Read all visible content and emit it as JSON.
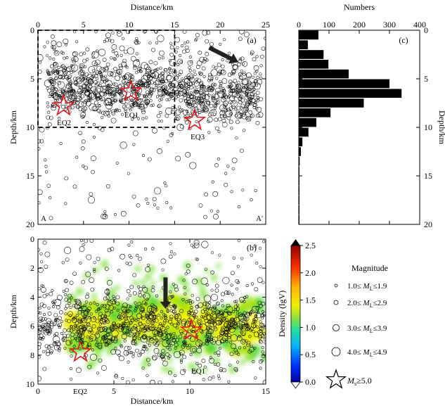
{
  "chart_data": [
    {
      "panel": "(a)",
      "type": "scatter",
      "title": "",
      "xlabel": "Distance/km",
      "ylabel": "Depth/km",
      "xlim": [
        0,
        25
      ],
      "ylim": [
        0,
        20
      ],
      "y_inverted": true,
      "x_ticks": [
        0,
        5,
        10,
        15,
        20,
        25
      ],
      "y_ticks": [
        0,
        5,
        10,
        15,
        20
      ],
      "x_axis_position": "top",
      "profile_labels": [
        "A",
        "A'"
      ],
      "events": [
        {
          "label": "EQ1",
          "x": 10.2,
          "y": 6.3
        },
        {
          "label": "EQ2",
          "x": 2.8,
          "y": 7.8
        },
        {
          "label": "EQ3",
          "x": 17.2,
          "y": 9.3
        }
      ],
      "dashed_box": {
        "x": [
          0,
          15
        ],
        "y": [
          0,
          10
        ]
      },
      "arrow": {
        "from": [
          18.8,
          1.8
        ],
        "to": [
          22.0,
          3.3
        ]
      },
      "notes": "dense cluster of small earthquakes concentrated at 4-8 km depth"
    },
    {
      "panel": "(c)",
      "type": "bar",
      "orientation": "horizontal",
      "xlabel": "Numbers",
      "ylabel": "Depth/km",
      "xlim": [
        0,
        400
      ],
      "ylim": [
        0,
        20
      ],
      "x_ticks": [
        0,
        100,
        200,
        300,
        400
      ],
      "y_ticks": [
        0,
        5,
        10,
        15,
        20
      ],
      "bin_width": 1,
      "bin_starts": [
        0,
        1,
        2,
        3,
        4,
        5,
        6,
        7,
        8,
        9,
        10,
        11,
        12,
        13,
        14,
        15,
        16,
        17,
        18,
        19
      ],
      "values": [
        65,
        30,
        82,
        98,
        165,
        300,
        340,
        215,
        105,
        58,
        32,
        12,
        7,
        3,
        2,
        1,
        1,
        1,
        1,
        1
      ]
    },
    {
      "panel": "(b)",
      "type": "heatmap",
      "xlabel": "Distance/km",
      "ylabel": "Depth/km",
      "xlim": [
        0,
        15
      ],
      "ylim": [
        0,
        10
      ],
      "y_inverted": true,
      "x_ticks": [
        0,
        5,
        10,
        15
      ],
      "y_ticks": [
        0,
        2,
        4,
        6,
        8,
        10
      ],
      "colorbar": {
        "label": "Density (lgV)",
        "range": [
          0.0,
          2.5
        ],
        "ticks": [
          "0.0",
          "0.5",
          "1.0",
          "1.5",
          "2.0",
          "2.5"
        ]
      },
      "events": [
        {
          "label": "EQ1",
          "x": 10.1,
          "y": 6.3
        },
        {
          "label": "EQ2",
          "x": 2.8,
          "y": 7.8
        }
      ],
      "arrow": {
        "from": [
          8.4,
          4.0
        ],
        "to": [
          8.4,
          4.8
        ]
      },
      "notes": "green-to-yellow density band between 4 and 8 km depth with scattered earthquakes overlaid"
    }
  ],
  "legend": {
    "title": "Magnitude",
    "items": [
      {
        "text": "1.0≤ M_L ≤1.9",
        "pre": "1.0≤",
        "sym": "M",
        "sub": "L",
        "post": "≤1.9",
        "size": "smallest circle"
      },
      {
        "text": "2.0≤ M_L ≤2.9",
        "pre": "2.0≤",
        "sym": "M",
        "sub": "L",
        "post": "≤2.9",
        "size": "small circle"
      },
      {
        "text": "3.0≤ M_L ≤3.9",
        "pre": "3.0≤",
        "sym": "M",
        "sub": "L",
        "post": "≤3.9",
        "size": "medium circle"
      },
      {
        "text": "4.0≤ M_L ≤4.9",
        "pre": "4.0≤",
        "sym": "M",
        "sub": "L",
        "post": "≤4.9",
        "size": "large circle"
      },
      {
        "text": "M_s ≥5.0",
        "pre": "",
        "sym": "M",
        "sub": "s",
        "post": "≥5.0",
        "size": "star"
      }
    ]
  }
}
